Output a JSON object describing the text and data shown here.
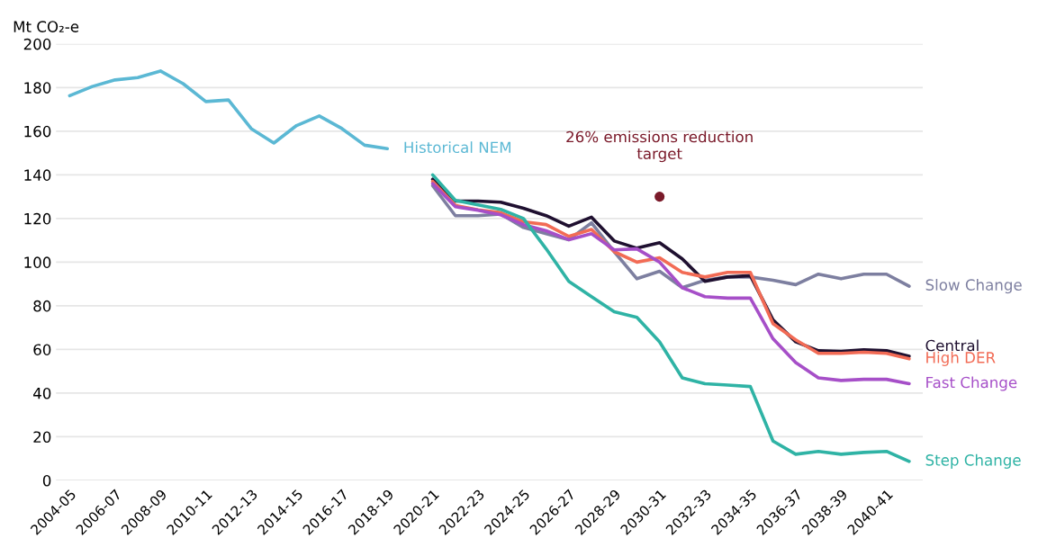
{
  "chart_data": {
    "type": "line",
    "ylabel": "Mt CO₂-e",
    "categories": [
      "2004-05",
      null,
      "2006-07",
      null,
      "2008-09",
      null,
      "2010-11",
      null,
      "2012-13",
      null,
      "2014-15",
      null,
      "2016-17",
      null,
      "2018-19",
      null,
      "2020-21",
      null,
      "2022-23",
      null,
      "2024-25",
      null,
      "2026-27",
      null,
      "2028-29",
      null,
      "2030-31",
      null,
      "2032-33",
      null,
      "2034-35",
      null,
      "2036-37",
      null,
      "2038-39",
      null,
      "2040-41",
      null
    ],
    "series": [
      {
        "name": "Historical NEM",
        "color": "#5bb8d4",
        "values": [
          176.3,
          180.5,
          183.5,
          184.6,
          187.6,
          181.8,
          173.6,
          174.3,
          161.2,
          154.6,
          162.6,
          167,
          161.2,
          153.6,
          152,
          null,
          null,
          null,
          null,
          null,
          null,
          null,
          null,
          null,
          null,
          null,
          null,
          null,
          null,
          null,
          null,
          null,
          null,
          null,
          null,
          null,
          null,
          null
        ]
      },
      {
        "name": "Slow Change",
        "color": "#7d7fa0",
        "values": [
          null,
          null,
          null,
          null,
          null,
          null,
          null,
          null,
          null,
          null,
          null,
          null,
          null,
          null,
          null,
          null,
          135,
          121.3,
          121.3,
          122,
          115.9,
          113,
          110.3,
          118,
          104.8,
          92.4,
          95.8,
          88.3,
          91.7,
          93.2,
          93.2,
          91.7,
          89.7,
          94.5,
          92.4,
          94.5,
          94.5,
          89
        ]
      },
      {
        "name": "Central",
        "color": "#1f1030",
        "values": [
          null,
          null,
          null,
          null,
          null,
          null,
          null,
          null,
          null,
          null,
          null,
          null,
          null,
          null,
          null,
          null,
          138,
          128,
          128,
          127.5,
          124.7,
          121.3,
          116.5,
          120.6,
          109.7,
          106.4,
          108.9,
          101.5,
          91.2,
          93.2,
          93.8,
          73.5,
          63.5,
          59.4,
          59.1,
          59.8,
          59.4,
          56.9
        ]
      },
      {
        "name": "High DER",
        "color": "#f26b55",
        "values": [
          null,
          null,
          null,
          null,
          null,
          null,
          null,
          null,
          null,
          null,
          null,
          null,
          null,
          null,
          null,
          null,
          137,
          126,
          124,
          122.7,
          118.5,
          117.2,
          111.8,
          115,
          104.8,
          100,
          102,
          95.3,
          93.2,
          95.3,
          95.3,
          71.8,
          64.4,
          58.2,
          58.2,
          58.7,
          58.2,
          55.7
        ]
      },
      {
        "name": "Fast Change",
        "color": "#a64fc8",
        "values": [
          null,
          null,
          null,
          null,
          null,
          null,
          null,
          null,
          null,
          null,
          null,
          null,
          null,
          null,
          null,
          null,
          136,
          125.4,
          123.8,
          121.7,
          117.2,
          114.4,
          110.3,
          113,
          105.6,
          106.1,
          100,
          88.3,
          84.2,
          83.5,
          83.5,
          64.9,
          54,
          47,
          45.8,
          46.3,
          46.3,
          44.3
        ]
      },
      {
        "name": "Step Change",
        "color": "#2fb3a5",
        "values": [
          null,
          null,
          null,
          null,
          null,
          null,
          null,
          null,
          null,
          null,
          null,
          null,
          null,
          null,
          null,
          null,
          140,
          128.3,
          126.2,
          124.2,
          120,
          106.1,
          91.2,
          84.2,
          77.3,
          74.7,
          63.5,
          47,
          44.3,
          43.7,
          43,
          18,
          12,
          13.3,
          12,
          12.8,
          13.3,
          8.7
        ]
      }
    ],
    "annotations": [
      {
        "text": "26% emissions reduction\ntarget",
        "x": "2030-31",
        "y": 130
      }
    ],
    "ylim": [
      0,
      200
    ],
    "yticks": [
      0,
      20,
      40,
      60,
      80,
      100,
      120,
      140,
      160,
      180,
      200
    ],
    "grid": "y"
  }
}
